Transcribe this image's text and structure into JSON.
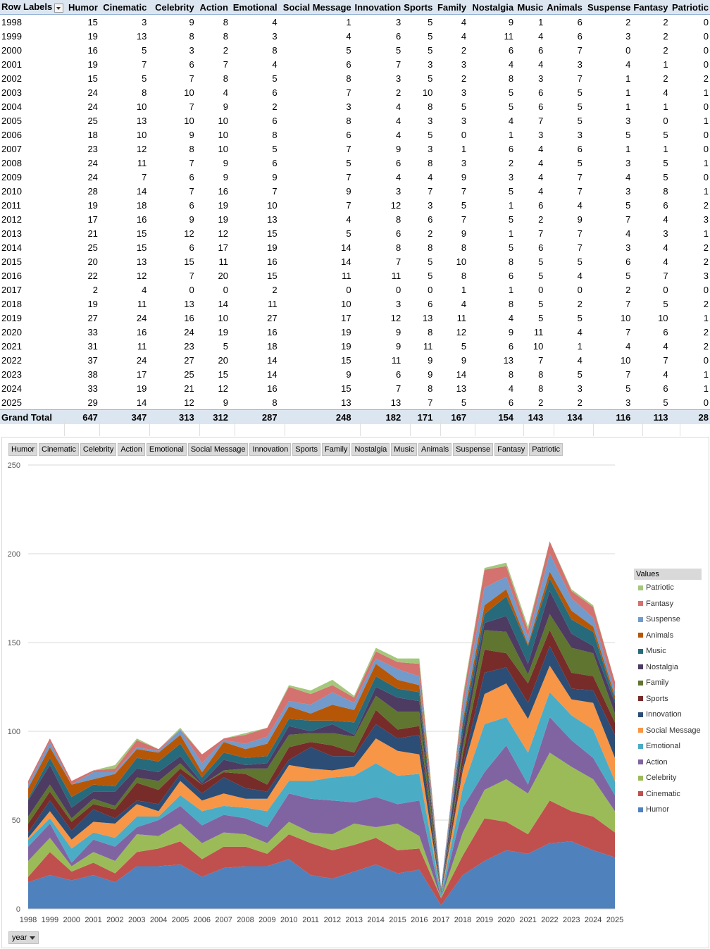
{
  "pivot": {
    "row_labels_header": "Row Labels",
    "columns": [
      "Humor",
      "Cinematic",
      "Celebrity",
      "Action",
      "Emotional",
      "Social Message",
      "Innovation",
      "Sports",
      "Family",
      "Nostalgia",
      "Music",
      "Animals",
      "Suspense",
      "Fantasy",
      "Patriotic"
    ],
    "rows": [
      {
        "year": "1998",
        "values": [
          15,
          3,
          9,
          8,
          4,
          1,
          3,
          5,
          4,
          9,
          1,
          6,
          2,
          2,
          0
        ]
      },
      {
        "year": "1999",
        "values": [
          19,
          13,
          8,
          8,
          3,
          4,
          6,
          5,
          4,
          11,
          4,
          6,
          3,
          2,
          0
        ]
      },
      {
        "year": "2000",
        "values": [
          16,
          5,
          3,
          2,
          8,
          5,
          5,
          5,
          2,
          6,
          6,
          7,
          0,
          2,
          0
        ]
      },
      {
        "year": "2001",
        "values": [
          19,
          7,
          6,
          7,
          4,
          6,
          7,
          3,
          3,
          4,
          4,
          3,
          4,
          1,
          0
        ]
      },
      {
        "year": "2002",
        "values": [
          15,
          5,
          7,
          8,
          5,
          8,
          3,
          5,
          2,
          8,
          3,
          7,
          1,
          2,
          2
        ]
      },
      {
        "year": "2003",
        "values": [
          24,
          8,
          10,
          4,
          6,
          7,
          2,
          10,
          3,
          5,
          6,
          5,
          1,
          4,
          1
        ]
      },
      {
        "year": "2004",
        "values": [
          24,
          10,
          7,
          9,
          2,
          3,
          4,
          8,
          5,
          5,
          6,
          5,
          1,
          1,
          0
        ]
      },
      {
        "year": "2005",
        "values": [
          25,
          13,
          10,
          10,
          6,
          8,
          4,
          3,
          3,
          4,
          7,
          5,
          3,
          0,
          1
        ]
      },
      {
        "year": "2006",
        "values": [
          18,
          10,
          9,
          10,
          8,
          6,
          4,
          5,
          0,
          1,
          3,
          3,
          5,
          5,
          0
        ]
      },
      {
        "year": "2007",
        "values": [
          23,
          12,
          8,
          10,
          5,
          7,
          9,
          3,
          1,
          6,
          4,
          6,
          1,
          1,
          0
        ]
      },
      {
        "year": "2008",
        "values": [
          24,
          11,
          7,
          9,
          6,
          5,
          6,
          8,
          3,
          2,
          4,
          5,
          3,
          5,
          1
        ]
      },
      {
        "year": "2009",
        "values": [
          24,
          7,
          6,
          9,
          9,
          7,
          4,
          4,
          9,
          3,
          4,
          7,
          4,
          5,
          0
        ]
      },
      {
        "year": "2010",
        "values": [
          28,
          14,
          7,
          16,
          7,
          9,
          3,
          7,
          7,
          5,
          4,
          7,
          3,
          8,
          1
        ]
      },
      {
        "year": "2011",
        "values": [
          19,
          18,
          6,
          19,
          10,
          7,
          12,
          3,
          5,
          1,
          6,
          4,
          5,
          6,
          2
        ]
      },
      {
        "year": "2012",
        "values": [
          17,
          16,
          9,
          19,
          13,
          4,
          8,
          6,
          7,
          5,
          2,
          9,
          7,
          4,
          3
        ]
      },
      {
        "year": "2013",
        "values": [
          21,
          15,
          12,
          12,
          15,
          5,
          6,
          2,
          9,
          1,
          7,
          7,
          4,
          3,
          1
        ]
      },
      {
        "year": "2014",
        "values": [
          25,
          15,
          6,
          17,
          19,
          14,
          8,
          8,
          8,
          5,
          6,
          7,
          3,
          4,
          2
        ]
      },
      {
        "year": "2015",
        "values": [
          20,
          13,
          15,
          11,
          16,
          14,
          7,
          5,
          10,
          8,
          5,
          5,
          6,
          4,
          2
        ]
      },
      {
        "year": "2016",
        "values": [
          22,
          12,
          7,
          20,
          15,
          11,
          11,
          5,
          8,
          6,
          5,
          4,
          5,
          7,
          3
        ]
      },
      {
        "year": "2017",
        "values": [
          2,
          4,
          0,
          0,
          2,
          0,
          0,
          0,
          1,
          1,
          0,
          0,
          2,
          0,
          0
        ]
      },
      {
        "year": "2018",
        "values": [
          19,
          11,
          13,
          14,
          11,
          10,
          3,
          6,
          4,
          8,
          5,
          2,
          7,
          5,
          2
        ]
      },
      {
        "year": "2019",
        "values": [
          27,
          24,
          16,
          10,
          27,
          17,
          12,
          13,
          11,
          4,
          5,
          5,
          10,
          10,
          1
        ]
      },
      {
        "year": "2020",
        "values": [
          33,
          16,
          24,
          19,
          16,
          19,
          9,
          8,
          12,
          9,
          11,
          4,
          7,
          6,
          2
        ]
      },
      {
        "year": "2021",
        "values": [
          31,
          11,
          23,
          5,
          18,
          19,
          9,
          11,
          5,
          6,
          10,
          1,
          4,
          4,
          2
        ]
      },
      {
        "year": "2022",
        "values": [
          37,
          24,
          27,
          20,
          14,
          15,
          11,
          9,
          9,
          13,
          7,
          4,
          10,
          7,
          0
        ]
      },
      {
        "year": "2023",
        "values": [
          38,
          17,
          25,
          15,
          14,
          9,
          6,
          9,
          14,
          8,
          8,
          5,
          7,
          4,
          1
        ]
      },
      {
        "year": "2024",
        "values": [
          33,
          19,
          21,
          12,
          16,
          15,
          7,
          8,
          13,
          4,
          8,
          3,
          5,
          6,
          1
        ]
      },
      {
        "year": "2025",
        "values": [
          29,
          14,
          12,
          9,
          8,
          13,
          13,
          7,
          5,
          6,
          2,
          2,
          3,
          5,
          0
        ]
      }
    ],
    "total_label": "Grand Total",
    "totals": [
      647,
      347,
      313,
      312,
      287,
      248,
      182,
      171,
      167,
      154,
      143,
      134,
      116,
      113,
      28
    ]
  },
  "chart_data": {
    "type": "area",
    "stacked": true,
    "x": [
      "1998",
      "1999",
      "2000",
      "2001",
      "2002",
      "2003",
      "2004",
      "2005",
      "2006",
      "2007",
      "2008",
      "2009",
      "2010",
      "2011",
      "2012",
      "2013",
      "2014",
      "2015",
      "2016",
      "2017",
      "2018",
      "2019",
      "2020",
      "2021",
      "2022",
      "2023",
      "2024",
      "2025"
    ],
    "ylim": [
      0,
      250
    ],
    "yticks": [
      0,
      50,
      100,
      150,
      200,
      250
    ],
    "grid": true,
    "legend_title": "Values",
    "legend_position": "right",
    "series": [
      {
        "name": "Humor",
        "color": "#4f81bd",
        "values": [
          15,
          19,
          16,
          19,
          15,
          24,
          24,
          25,
          18,
          23,
          24,
          24,
          28,
          19,
          17,
          21,
          25,
          20,
          22,
          2,
          19,
          27,
          33,
          31,
          37,
          38,
          33,
          29
        ]
      },
      {
        "name": "Cinematic",
        "color": "#c0504d",
        "values": [
          3,
          13,
          5,
          7,
          5,
          8,
          10,
          13,
          10,
          12,
          11,
          7,
          14,
          18,
          16,
          15,
          15,
          13,
          12,
          4,
          11,
          24,
          16,
          11,
          24,
          17,
          19,
          14
        ]
      },
      {
        "name": "Celebrity",
        "color": "#9bbb59",
        "values": [
          9,
          8,
          3,
          6,
          7,
          10,
          7,
          10,
          9,
          8,
          7,
          6,
          7,
          6,
          9,
          12,
          6,
          15,
          7,
          0,
          13,
          16,
          24,
          23,
          27,
          25,
          21,
          12
        ]
      },
      {
        "name": "Action",
        "color": "#8064a2",
        "values": [
          8,
          8,
          2,
          7,
          8,
          4,
          9,
          10,
          10,
          10,
          9,
          9,
          16,
          19,
          19,
          12,
          17,
          11,
          20,
          0,
          14,
          10,
          19,
          5,
          20,
          15,
          12,
          9
        ]
      },
      {
        "name": "Emotional",
        "color": "#4bacc6",
        "values": [
          4,
          3,
          8,
          4,
          5,
          6,
          2,
          6,
          8,
          5,
          6,
          9,
          7,
          10,
          13,
          15,
          19,
          16,
          15,
          2,
          11,
          27,
          16,
          18,
          14,
          14,
          16,
          8
        ]
      },
      {
        "name": "Social Message",
        "color": "#f79646",
        "values": [
          1,
          4,
          5,
          6,
          8,
          7,
          3,
          8,
          6,
          7,
          5,
          7,
          9,
          7,
          4,
          5,
          14,
          14,
          11,
          0,
          10,
          17,
          19,
          19,
          15,
          9,
          15,
          13
        ]
      },
      {
        "name": "Innovation",
        "color": "#2c4d75",
        "values": [
          3,
          6,
          5,
          7,
          3,
          2,
          4,
          4,
          4,
          9,
          6,
          4,
          3,
          12,
          8,
          6,
          8,
          7,
          11,
          0,
          3,
          12,
          9,
          9,
          11,
          6,
          7,
          13
        ]
      },
      {
        "name": "Sports",
        "color": "#772c2a",
        "values": [
          5,
          5,
          5,
          3,
          5,
          10,
          8,
          3,
          5,
          3,
          8,
          4,
          7,
          3,
          6,
          2,
          8,
          5,
          5,
          0,
          6,
          13,
          8,
          11,
          9,
          9,
          8,
          7
        ]
      },
      {
        "name": "Family",
        "color": "#5f7530",
        "values": [
          4,
          4,
          2,
          3,
          2,
          3,
          5,
          3,
          0,
          1,
          3,
          9,
          7,
          5,
          7,
          9,
          8,
          10,
          8,
          1,
          4,
          11,
          12,
          5,
          9,
          14,
          13,
          5
        ]
      },
      {
        "name": "Nostalgia",
        "color": "#4d3b62",
        "values": [
          9,
          11,
          6,
          4,
          8,
          5,
          5,
          4,
          1,
          6,
          2,
          3,
          5,
          1,
          5,
          1,
          5,
          8,
          6,
          1,
          8,
          4,
          9,
          6,
          13,
          8,
          4,
          6
        ]
      },
      {
        "name": "Music",
        "color": "#276a7c",
        "values": [
          1,
          4,
          6,
          4,
          3,
          6,
          6,
          7,
          3,
          4,
          4,
          4,
          4,
          6,
          2,
          7,
          6,
          5,
          5,
          0,
          5,
          5,
          11,
          10,
          7,
          8,
          8,
          2
        ]
      },
      {
        "name": "Animals",
        "color": "#b65708",
        "values": [
          6,
          6,
          7,
          3,
          7,
          5,
          5,
          5,
          3,
          6,
          5,
          7,
          7,
          4,
          9,
          7,
          7,
          5,
          4,
          0,
          2,
          5,
          4,
          1,
          4,
          5,
          3,
          2
        ]
      },
      {
        "name": "Suspense",
        "color": "#729aca",
        "values": [
          2,
          3,
          0,
          4,
          1,
          1,
          1,
          3,
          5,
          1,
          3,
          4,
          3,
          5,
          7,
          4,
          3,
          6,
          5,
          2,
          7,
          10,
          7,
          4,
          10,
          7,
          5,
          3
        ]
      },
      {
        "name": "Fantasy",
        "color": "#d3726f",
        "values": [
          2,
          2,
          2,
          1,
          2,
          4,
          1,
          0,
          5,
          1,
          5,
          5,
          8,
          6,
          4,
          3,
          4,
          4,
          7,
          0,
          5,
          10,
          6,
          4,
          7,
          4,
          6,
          5
        ]
      },
      {
        "name": "Patriotic",
        "color": "#a5c77d",
        "values": [
          0,
          0,
          0,
          0,
          2,
          1,
          0,
          1,
          0,
          0,
          1,
          0,
          1,
          2,
          3,
          1,
          2,
          2,
          3,
          0,
          2,
          1,
          2,
          2,
          0,
          1,
          1,
          0
        ]
      }
    ]
  },
  "chart_ui": {
    "axis_field_button": "year"
  }
}
